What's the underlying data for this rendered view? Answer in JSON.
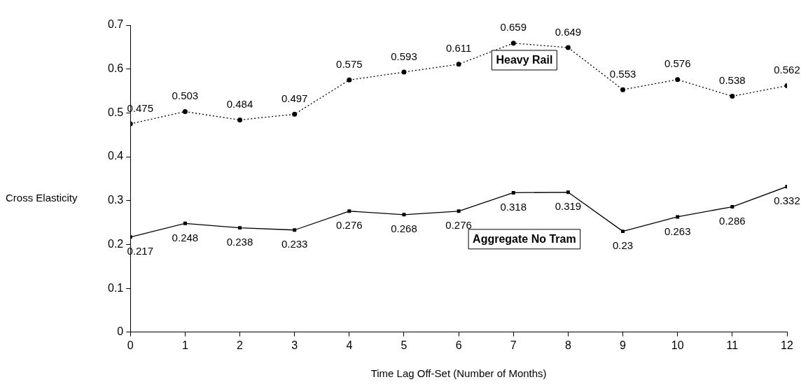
{
  "chart_data": {
    "type": "line",
    "xlabel": "Time Lag Off-Set (Number of Months)",
    "ylabel": "Cross Elasticity",
    "x": [
      0,
      1,
      2,
      3,
      4,
      5,
      6,
      7,
      8,
      9,
      10,
      11,
      12
    ],
    "xlim": [
      0,
      12
    ],
    "xticks": [
      0,
      1,
      2,
      3,
      4,
      5,
      6,
      7,
      8,
      9,
      10,
      11,
      12
    ],
    "ylim": [
      0,
      0.7
    ],
    "yticks": [
      0,
      0.1,
      0.2,
      0.3,
      0.4,
      0.5,
      0.6,
      0.7
    ],
    "grid": false,
    "legend": false,
    "data_labels": true,
    "series": [
      {
        "name": "Heavy Rail",
        "color": "#000000",
        "marker": "circle",
        "line_style": "dotted",
        "values": [
          0.475,
          0.503,
          0.484,
          0.497,
          0.575,
          0.593,
          0.611,
          0.659,
          0.649,
          0.553,
          0.576,
          0.538,
          0.562
        ]
      },
      {
        "name": "Aggregate No Tram",
        "color": "#000000",
        "marker": "square",
        "line_style": "solid",
        "values": [
          0.217,
          0.248,
          0.238,
          0.233,
          0.276,
          0.268,
          0.276,
          0.318,
          0.319,
          0.23,
          0.263,
          0.286,
          0.332
        ]
      }
    ]
  }
}
